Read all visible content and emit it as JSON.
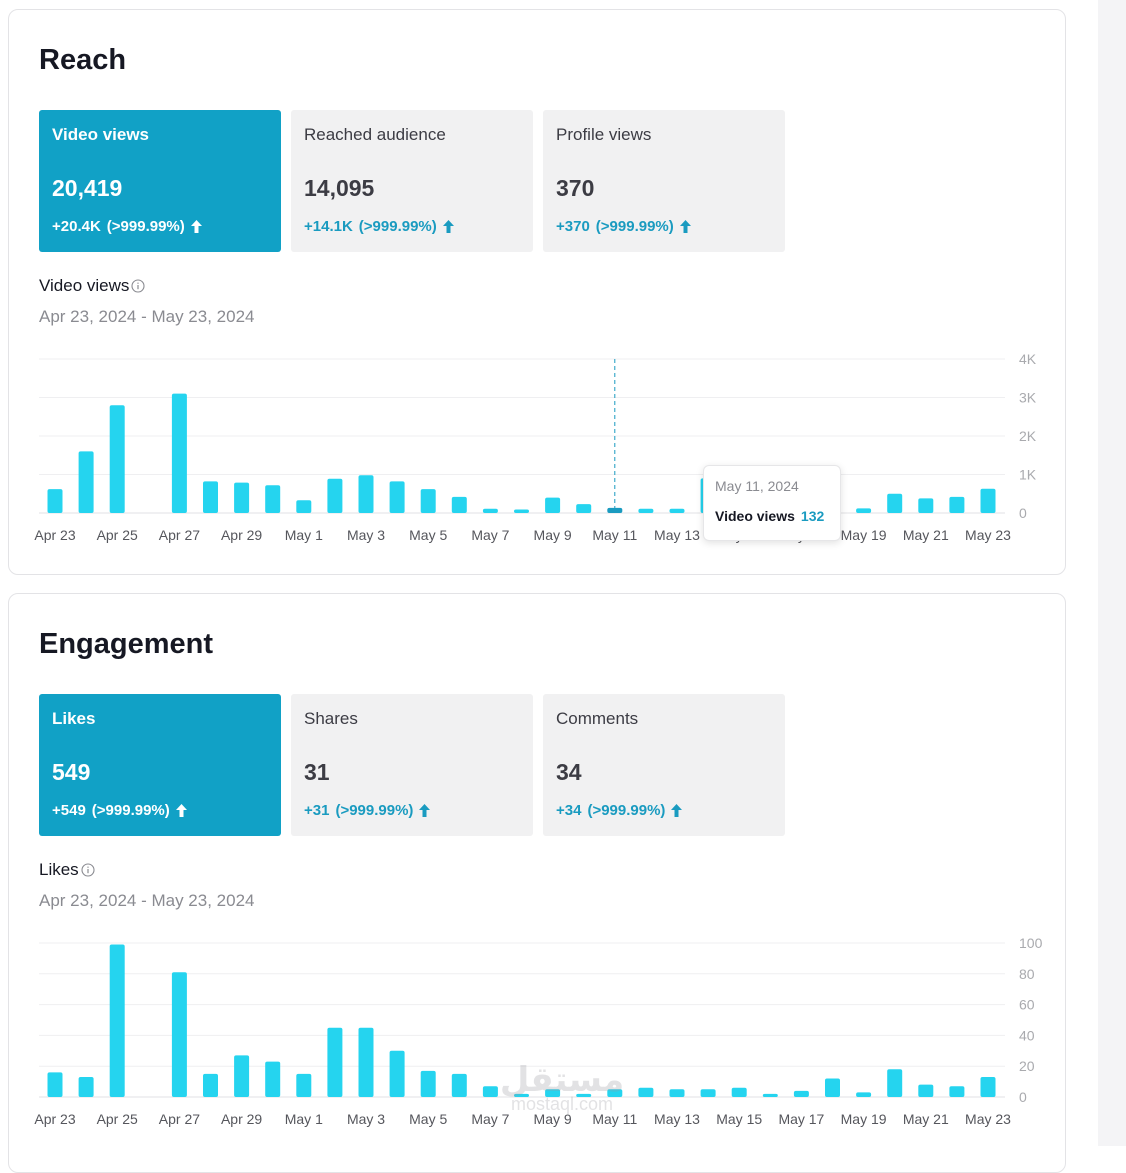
{
  "reach": {
    "title": "Reach",
    "tiles": [
      {
        "label": "Video views",
        "value": "20,419",
        "change": "+20.4K",
        "pct": "(>999.99%)",
        "active": true
      },
      {
        "label": "Reached audience",
        "value": "14,095",
        "change": "+14.1K",
        "pct": "(>999.99%)",
        "active": false
      },
      {
        "label": "Profile views",
        "value": "370",
        "change": "+370",
        "pct": "(>999.99%)",
        "active": false
      }
    ],
    "metric_label": "Video views",
    "date_range": "Apr 23, 2024 - May 23, 2024",
    "tooltip": {
      "date": "May 11, 2024",
      "label": "Video views",
      "value": "132"
    }
  },
  "engagement": {
    "title": "Engagement",
    "tiles": [
      {
        "label": "Likes",
        "value": "549",
        "change": "+549",
        "pct": "(>999.99%)",
        "active": true
      },
      {
        "label": "Shares",
        "value": "31",
        "change": "+31",
        "pct": "(>999.99%)",
        "active": false
      },
      {
        "label": "Comments",
        "value": "34",
        "change": "+34",
        "pct": "(>999.99%)",
        "active": false
      }
    ],
    "metric_label": "Likes",
    "date_range": "Apr 23, 2024 - May 23, 2024"
  },
  "watermark": {
    "logo": "مستقل",
    "text": "mostaql.com"
  },
  "colors": {
    "accent": "#11a1c6",
    "bar": "#25d4ef",
    "bar_highlight": "#1a9bc0",
    "positive": "#1a9bc0"
  },
  "chart_data": [
    {
      "type": "bar",
      "title": "Video views",
      "categories": [
        "Apr 23",
        "Apr 24",
        "Apr 25",
        "Apr 26",
        "Apr 27",
        "Apr 28",
        "Apr 29",
        "Apr 30",
        "May 1",
        "May 2",
        "May 3",
        "May 4",
        "May 5",
        "May 6",
        "May 7",
        "May 8",
        "May 9",
        "May 10",
        "May 11",
        "May 12",
        "May 13",
        "May 14",
        "May 15",
        "May 16",
        "May 17",
        "May 18",
        "May 19",
        "May 20",
        "May 21",
        "May 22",
        "May 23"
      ],
      "tick_labels": [
        "Apr 23",
        "Apr 25",
        "Apr 27",
        "Apr 29",
        "May 1",
        "May 3",
        "May 5",
        "May 7",
        "May 9",
        "May 11",
        "May 13",
        "May 15",
        "May 17",
        "May 19",
        "May 21",
        "May 23"
      ],
      "values": [
        620,
        1600,
        2800,
        0,
        3100,
        820,
        790,
        720,
        330,
        890,
        980,
        820,
        620,
        420,
        110,
        90,
        400,
        230,
        132,
        110,
        110,
        900,
        850,
        820,
        600,
        200,
        120,
        500,
        380,
        420,
        630
      ],
      "ylim": [
        0,
        4000
      ],
      "yticks": [
        "0",
        "1K",
        "2K",
        "3K",
        "4K"
      ],
      "highlight": "May 11",
      "grid": true
    },
    {
      "type": "bar",
      "title": "Likes",
      "categories": [
        "Apr 23",
        "Apr 24",
        "Apr 25",
        "Apr 26",
        "Apr 27",
        "Apr 28",
        "Apr 29",
        "Apr 30",
        "May 1",
        "May 2",
        "May 3",
        "May 4",
        "May 5",
        "May 6",
        "May 7",
        "May 8",
        "May 9",
        "May 10",
        "May 11",
        "May 12",
        "May 13",
        "May 14",
        "May 15",
        "May 16",
        "May 17",
        "May 18",
        "May 19",
        "May 20",
        "May 21",
        "May 22",
        "May 23"
      ],
      "tick_labels": [
        "Apr 23",
        "Apr 25",
        "Apr 27",
        "Apr 29",
        "May 1",
        "May 3",
        "May 5",
        "May 7",
        "May 9",
        "May 11",
        "May 13",
        "May 15",
        "May 17",
        "May 19",
        "May 21",
        "May 23"
      ],
      "values": [
        16,
        13,
        99,
        0,
        81,
        15,
        27,
        23,
        15,
        45,
        45,
        30,
        17,
        15,
        7,
        2,
        5,
        2,
        5,
        6,
        5,
        5,
        6,
        2,
        4,
        12,
        3,
        18,
        8,
        7,
        13
      ],
      "ylim": [
        0,
        100
      ],
      "yticks": [
        "0",
        "20",
        "40",
        "60",
        "80",
        "100"
      ],
      "grid": true
    }
  ]
}
